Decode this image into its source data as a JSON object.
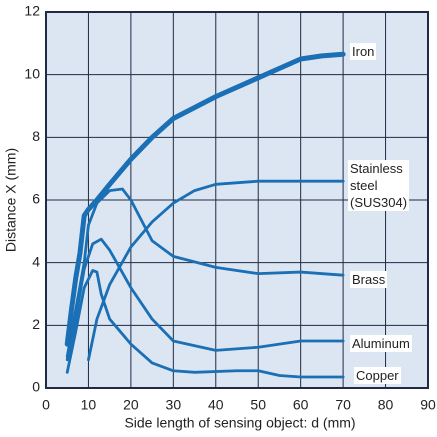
{
  "chart_data": {
    "type": "line",
    "x_label": "Side length of sensing object: d (mm)",
    "y_label": "Distance X (mm)",
    "xlim": [
      0,
      90
    ],
    "xticks": [
      0,
      10,
      20,
      30,
      40,
      50,
      60,
      70,
      80,
      90
    ],
    "ylim": [
      0,
      12
    ],
    "yticks": [
      0,
      2,
      4,
      6,
      8,
      10,
      12
    ],
    "grid": true,
    "series": [
      {
        "name": "Iron",
        "color": "#1a6fb5",
        "x": [
          5,
          6,
          7,
          8,
          9,
          10,
          12,
          15,
          20,
          25,
          30,
          40,
          50,
          55,
          60,
          65,
          70
        ],
        "values": [
          1.4,
          2.5,
          3.5,
          4.3,
          5.5,
          5.7,
          6.0,
          6.5,
          7.3,
          8.0,
          8.6,
          9.3,
          9.9,
          10.2,
          10.5,
          10.6,
          10.65
        ]
      },
      {
        "name": "Stainless steel (SUS304)",
        "color": "#1a6fb5",
        "x": [
          10,
          12,
          15,
          20,
          25,
          30,
          35,
          40,
          50,
          60,
          70
        ],
        "values": [
          0.9,
          2.2,
          3.3,
          4.5,
          5.3,
          5.9,
          6.3,
          6.5,
          6.6,
          6.6,
          6.6
        ]
      },
      {
        "name": "Brass",
        "color": "#1a6fb5",
        "x": [
          5,
          7,
          9,
          10,
          12,
          15,
          18,
          20,
          25,
          30,
          40,
          50,
          60,
          70
        ],
        "values": [
          1.0,
          2.5,
          4.0,
          5.2,
          5.9,
          6.3,
          6.35,
          6.0,
          4.7,
          4.2,
          3.85,
          3.65,
          3.7,
          3.6
        ]
      },
      {
        "name": "Aluminum",
        "color": "#1a6fb5",
        "x": [
          5,
          7,
          9,
          11,
          13,
          15,
          20,
          25,
          30,
          40,
          50,
          60,
          70
        ],
        "values": [
          0.9,
          2.2,
          3.8,
          4.6,
          4.75,
          4.4,
          3.2,
          2.2,
          1.5,
          1.2,
          1.3,
          1.5,
          1.5
        ]
      },
      {
        "name": "Copper",
        "color": "#1a6fb5",
        "x": [
          5,
          7,
          9,
          11,
          12,
          13,
          15,
          20,
          25,
          30,
          35,
          45,
          50,
          55,
          60,
          70
        ],
        "values": [
          0.5,
          1.8,
          3.2,
          3.75,
          3.7,
          3.0,
          2.2,
          1.4,
          0.8,
          0.55,
          0.5,
          0.55,
          0.55,
          0.4,
          0.35,
          0.35
        ]
      }
    ]
  }
}
